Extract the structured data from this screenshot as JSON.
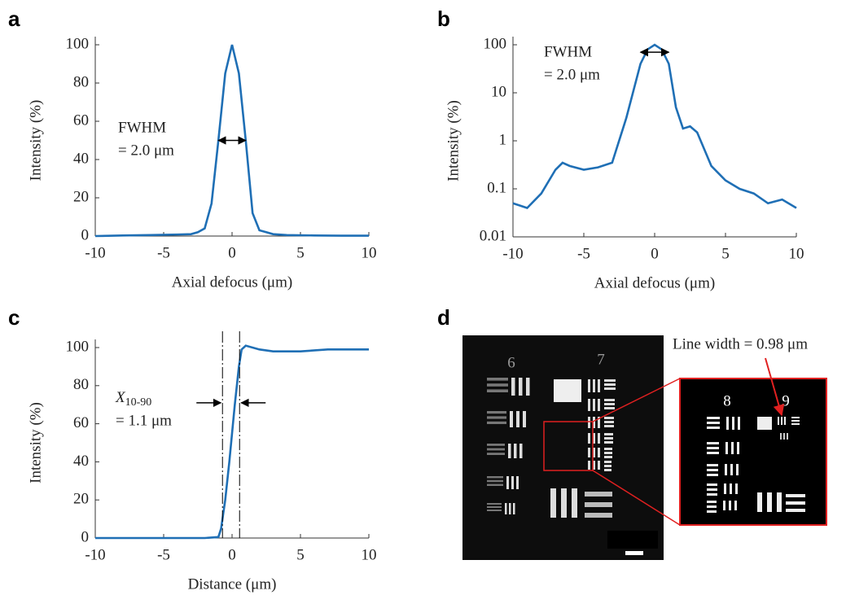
{
  "chart_data": [
    {
      "type": "line",
      "panel_label": "a",
      "xlabel": "Axial defocus (μm)",
      "ylabel": "Intensity (%)",
      "xlim": [
        -10,
        10
      ],
      "xticks": [
        -10,
        -5,
        0,
        5,
        10
      ],
      "ylim": [
        0,
        100
      ],
      "yticks": [
        0,
        20,
        40,
        60,
        80,
        100
      ],
      "annotation_lines": [
        "FWHM",
        "= 2.0 μm"
      ],
      "arrow_x": [
        -1,
        1
      ],
      "arrow_y": 50,
      "series": [
        {
          "color": "#1f6fb5",
          "x": [
            -10,
            -8,
            -6,
            -4,
            -3,
            -2.5,
            -2,
            -1.5,
            -1,
            -0.5,
            0,
            0.5,
            1,
            1.5,
            2,
            2.5,
            3,
            4,
            6,
            8,
            10
          ],
          "values": [
            0,
            0.3,
            0.5,
            0.8,
            1,
            2,
            4,
            17,
            50,
            85,
            100,
            85,
            50,
            12,
            3,
            2,
            1,
            0.5,
            0.3,
            0.2,
            0.2
          ]
        }
      ]
    },
    {
      "type": "line",
      "panel_label": "b",
      "xlabel": "Axial defocus (μm)",
      "ylabel": "Intensity (%)",
      "log_y": true,
      "xlim": [
        -10,
        10
      ],
      "xticks": [
        -10,
        -5,
        0,
        5,
        10
      ],
      "ylim": [
        0.01,
        100
      ],
      "yticks": [
        0.01,
        0.1,
        1,
        10,
        100
      ],
      "annotation_lines": [
        "FWHM",
        "= 2.0 μm"
      ],
      "arrow_x": [
        -1,
        1
      ],
      "arrow_y": 70,
      "series": [
        {
          "color": "#1f6fb5",
          "x": [
            -10,
            -9,
            -8,
            -7,
            -6.5,
            -6,
            -5,
            -4,
            -3,
            -2,
            -1,
            -0.5,
            0,
            0.5,
            1,
            1.5,
            2,
            2.5,
            3,
            4,
            5,
            6,
            7,
            8,
            9,
            10
          ],
          "values": [
            0.05,
            0.04,
            0.08,
            0.25,
            0.35,
            0.3,
            0.25,
            0.28,
            0.35,
            3,
            40,
            80,
            100,
            80,
            40,
            5,
            1.8,
            2,
            1.5,
            0.3,
            0.15,
            0.1,
            0.08,
            0.05,
            0.06,
            0.04
          ]
        }
      ]
    },
    {
      "type": "line",
      "panel_label": "c",
      "xlabel": "Distance (μm)",
      "ylabel": "Intensity (%)",
      "xlim": [
        -10,
        10
      ],
      "xticks": [
        -10,
        -5,
        0,
        5,
        10
      ],
      "ylim": [
        0,
        100
      ],
      "yticks": [
        0,
        20,
        40,
        60,
        80,
        100
      ],
      "annotation_symbol": "X",
      "annotation_subscript": "10-90",
      "annotation_value": "= 1.1 μm",
      "markers_x": [
        -0.7,
        0.55
      ],
      "arrow_y": 71,
      "series": [
        {
          "color": "#1f6fb5",
          "x": [
            -10,
            -2,
            -1,
            -0.8,
            -0.5,
            -0.2,
            0,
            0.2,
            0.5,
            0.7,
            1,
            2,
            3,
            5,
            7,
            10
          ],
          "values": [
            0,
            0,
            0.5,
            5,
            20,
            40,
            55,
            70,
            90,
            99,
            101,
            99,
            98,
            98,
            99,
            99
          ]
        }
      ]
    }
  ],
  "image_panel": {
    "panel_label": "d",
    "group_labels": [
      "6",
      "7"
    ],
    "inset_labels": [
      "8",
      "9"
    ],
    "annotation": "Line width = 0.98 μm"
  }
}
